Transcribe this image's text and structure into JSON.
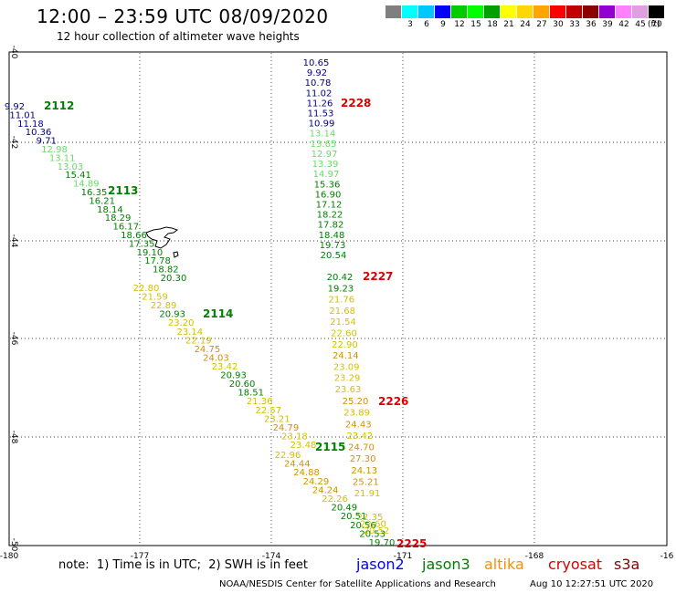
{
  "title": "12:00 – 23:59 UTC 08/09/2020",
  "subtitle": "12 hour collection of altimeter wave heights",
  "colorbar": {
    "colors": [
      "#7f7f7f",
      "#00ffff",
      "#00c8ff",
      "#0000ff",
      "#00cc00",
      "#00ff00",
      "#00a000",
      "#ffff00",
      "#ffd700",
      "#ffa500",
      "#ff0000",
      "#c00000",
      "#8b0000",
      "#9400d3",
      "#ff80ff",
      "#e0a0e0",
      "#000000"
    ],
    "labels": [
      "",
      "3",
      "6",
      "9",
      "12",
      "15",
      "18",
      "21",
      "24",
      "27",
      "30",
      "33",
      "36",
      "39",
      "42",
      "45",
      "70"
    ],
    "unit": "(ft)"
  },
  "axes": {
    "lon_labels": [
      "-180",
      "-177",
      "-174",
      "-171",
      "-168",
      "-16"
    ],
    "lat_labels": [
      "-40",
      "-42",
      "-44",
      "-46",
      "-48",
      "-50"
    ]
  },
  "tracks": [
    {
      "id": "2112",
      "color": "#008000",
      "values": [
        [
          "9.92",
          "#00008b"
        ],
        [
          "11.01",
          "#00008b"
        ],
        [
          "11.18",
          "#00008b"
        ],
        [
          "10.36",
          "#00008b"
        ],
        [
          "9.71",
          "#00008b"
        ],
        [
          "12.98",
          "#66dd66"
        ],
        [
          "13.11",
          "#66dd66"
        ],
        [
          "13.03",
          "#66dd66"
        ],
        [
          "15.41",
          "#008000"
        ],
        [
          "14.89",
          "#66dd66"
        ],
        [
          "16.35",
          "#008000"
        ],
        [
          "16.21",
          "#008000"
        ],
        [
          "18.14",
          "#008000"
        ],
        [
          "18.29",
          "#008000"
        ],
        [
          "16.17",
          "#008000"
        ],
        [
          "18.66",
          "#008000"
        ],
        [
          "17.35",
          "#008000"
        ],
        [
          "19.10",
          "#008000"
        ],
        [
          "17.78",
          "#008000"
        ],
        [
          "18.82",
          "#008000"
        ],
        [
          "20.30",
          "#008000"
        ]
      ]
    },
    {
      "id": "2113",
      "color": "#008000"
    },
    {
      "id": "2114",
      "color": "#008000",
      "values": [
        [
          "22.80",
          "#d4c000"
        ],
        [
          "21.59",
          "#d4c000"
        ],
        [
          "22.89",
          "#d4c000"
        ],
        [
          "20.93",
          "#008000"
        ],
        [
          "23.20",
          "#d4c000"
        ],
        [
          "23.14",
          "#d4c000"
        ],
        [
          "22.19",
          "#d4c000"
        ],
        [
          "24.75",
          "#d49000"
        ],
        [
          "24.03",
          "#d49000"
        ],
        [
          "23.42",
          "#d4c000"
        ],
        [
          "20.93",
          "#008000"
        ],
        [
          "20.60",
          "#008000"
        ],
        [
          "18.51",
          "#008000"
        ],
        [
          "21.36",
          "#d4c000"
        ],
        [
          "22.57",
          "#d4c000"
        ],
        [
          "23.21",
          "#d4c000"
        ],
        [
          "24.79",
          "#d49000"
        ],
        [
          "23.18",
          "#d4c000"
        ],
        [
          "23.48",
          "#d4c000"
        ]
      ]
    },
    {
      "id": "2115",
      "color": "#008000",
      "values": [
        [
          "22.96",
          "#d4c000"
        ],
        [
          "24.44",
          "#d49000"
        ],
        [
          "24.88",
          "#d49000"
        ],
        [
          "24.29",
          "#d49000"
        ],
        [
          "24.24",
          "#d49000"
        ],
        [
          "22.26",
          "#d4c000"
        ],
        [
          "20.49",
          "#008000"
        ],
        [
          "20.51",
          "#008000"
        ],
        [
          "20.56",
          "#008000"
        ],
        [
          "20.53",
          "#008000"
        ],
        [
          "19.70",
          "#008000"
        ]
      ]
    },
    {
      "id": "2228",
      "color": "#dd0000",
      "values": [
        [
          "10.65",
          "#00008b"
        ],
        [
          "9.92",
          "#00008b"
        ],
        [
          "10.78",
          "#00008b"
        ],
        [
          "11.02",
          "#00008b"
        ],
        [
          "11.26",
          "#00008b"
        ],
        [
          "11.53",
          "#00008b"
        ],
        [
          "10.99",
          "#00008b"
        ],
        [
          "13.14",
          "#66dd66"
        ],
        [
          "13.65",
          "#66dd66"
        ],
        [
          "12.97",
          "#66dd66"
        ],
        [
          "13.39",
          "#66dd66"
        ],
        [
          "14.97",
          "#66dd66"
        ],
        [
          "15.36",
          "#008000"
        ],
        [
          "16.90",
          "#008000"
        ],
        [
          "17.12",
          "#008000"
        ],
        [
          "18.22",
          "#008000"
        ],
        [
          "17.82",
          "#008000"
        ],
        [
          "18.48",
          "#008000"
        ],
        [
          "19.73",
          "#008000"
        ],
        [
          "20.54",
          "#008000"
        ]
      ]
    },
    {
      "id": "2227",
      "color": "#dd0000",
      "values": [
        [
          "20.42",
          "#008000"
        ],
        [
          "19.23",
          "#008000"
        ],
        [
          "21.76",
          "#d4c000"
        ],
        [
          "21.68",
          "#d4c000"
        ],
        [
          "21.54",
          "#d4c000"
        ],
        [
          "22.60",
          "#d4c000"
        ],
        [
          "22.90",
          "#d4c000"
        ],
        [
          "24.14",
          "#d49000"
        ],
        [
          "23.09",
          "#d4c000"
        ],
        [
          "23.29",
          "#d4c000"
        ],
        [
          "23.63",
          "#d4c000"
        ]
      ]
    },
    {
      "id": "2226",
      "color": "#dd0000",
      "values": [
        [
          "25.20",
          "#d49000"
        ],
        [
          "23.89",
          "#d4c000"
        ],
        [
          "24.43",
          "#d49000"
        ],
        [
          "23.42",
          "#d4c000"
        ],
        [
          "24.70",
          "#d49000"
        ],
        [
          "27.30",
          "#d49000"
        ],
        [
          "24.13",
          "#d49000"
        ],
        [
          "25.21",
          "#d49000"
        ],
        [
          "21.91",
          "#d4c000"
        ]
      ]
    },
    {
      "id": "2225",
      "color": "#dd0000",
      "values": [
        [
          "22.35",
          "#d4c000"
        ],
        [
          "22.60",
          "#d4c000"
        ],
        [
          "20.52",
          "#d4c000"
        ]
      ]
    }
  ],
  "note": "note:  1) Time is in UTC;  2) SWH is in feet",
  "legend": [
    {
      "label": "jason2",
      "color": "#0000ff"
    },
    {
      "label": "jason3",
      "color": "#008000"
    },
    {
      "label": "altika",
      "color": "#ff8c00"
    },
    {
      "label": "cryosat",
      "color": "#dd0000"
    },
    {
      "label": "s3a",
      "color": "#8b0000"
    }
  ],
  "credit": "NOAA/NESDIS Center for Satellite Applications and Research",
  "timestamp": "Aug 10 12:27:51 UTC 2020"
}
